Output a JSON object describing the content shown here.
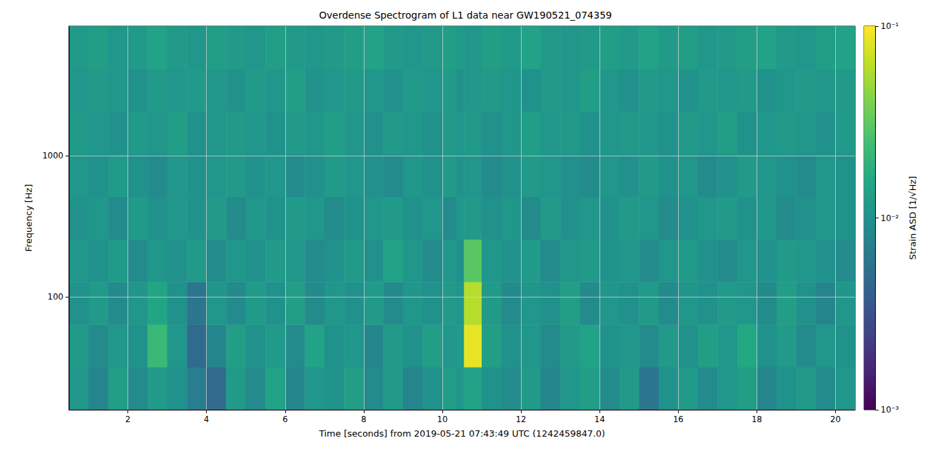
{
  "chart_data": {
    "type": "heatmap",
    "title": "Overdense Spectrogram of L1 data near GW190521_074359",
    "x_label": "Time [seconds] from 2019-05-21 07:43:49 UTC (1242459847.0)",
    "y_label": "Frequency [Hz]",
    "log": "y",
    "grid": true,
    "color": "viridis",
    "xlim": [
      0.5,
      20.5
    ],
    "xticks": [
      2,
      4,
      6,
      8,
      10,
      12,
      14,
      16,
      18,
      20
    ],
    "ylim": [
      16,
      8192
    ],
    "yticks": [
      100,
      1000
    ],
    "time_edges": [
      0.5,
      1.0,
      1.5,
      2.0,
      2.5,
      3.0,
      3.5,
      4.0,
      4.5,
      5.0,
      5.5,
      6.0,
      6.5,
      7.0,
      7.5,
      8.0,
      8.5,
      9.0,
      9.5,
      10.0,
      10.35,
      10.55,
      11.0,
      11.5,
      12.0,
      12.5,
      13.0,
      13.5,
      14.0,
      14.5,
      15.0,
      15.5,
      16.0,
      16.5,
      17.0,
      17.5,
      18.0,
      18.5,
      19.0,
      19.5,
      20.0,
      20.5
    ],
    "frequency_edges": [
      16,
      32,
      64,
      128,
      256,
      512,
      1024,
      2048,
      4096,
      8192
    ],
    "cells": [
      [
        0.011,
        0.008,
        0.013,
        0.009,
        0.012,
        0.01,
        0.007,
        0.005,
        0.012,
        0.009,
        0.014,
        0.008,
        0.011,
        0.01,
        0.013,
        0.009,
        0.012,
        0.008,
        0.01,
        0.013,
        0.011,
        0.014,
        0.01,
        0.009,
        0.012,
        0.008,
        0.011,
        0.013,
        0.009,
        0.012,
        0.006,
        0.01,
        0.012,
        0.009,
        0.011,
        0.013,
        0.008,
        0.01,
        0.012,
        0.009,
        0.011
      ],
      [
        0.012,
        0.009,
        0.011,
        0.01,
        0.022,
        0.011,
        0.005,
        0.008,
        0.013,
        0.01,
        0.012,
        0.009,
        0.014,
        0.01,
        0.011,
        0.008,
        0.012,
        0.01,
        0.013,
        0.011,
        0.012,
        0.085,
        0.013,
        0.01,
        0.011,
        0.009,
        0.012,
        0.014,
        0.01,
        0.011,
        0.009,
        0.012,
        0.01,
        0.013,
        0.011,
        0.016,
        0.01,
        0.012,
        0.009,
        0.011,
        0.01
      ],
      [
        0.01,
        0.012,
        0.009,
        0.011,
        0.015,
        0.01,
        0.006,
        0.011,
        0.009,
        0.012,
        0.01,
        0.013,
        0.009,
        0.011,
        0.01,
        0.012,
        0.009,
        0.011,
        0.01,
        0.012,
        0.011,
        0.06,
        0.012,
        0.009,
        0.011,
        0.01,
        0.013,
        0.009,
        0.011,
        0.01,
        0.012,
        0.009,
        0.011,
        0.01,
        0.012,
        0.011,
        0.009,
        0.013,
        0.01,
        0.008,
        0.011
      ],
      [
        0.011,
        0.01,
        0.012,
        0.009,
        0.011,
        0.01,
        0.012,
        0.009,
        0.011,
        0.01,
        0.012,
        0.011,
        0.009,
        0.01,
        0.012,
        0.01,
        0.014,
        0.011,
        0.009,
        0.011,
        0.01,
        0.03,
        0.011,
        0.01,
        0.012,
        0.009,
        0.011,
        0.012,
        0.01,
        0.011,
        0.009,
        0.011,
        0.012,
        0.01,
        0.009,
        0.011,
        0.01,
        0.012,
        0.011,
        0.01,
        0.009
      ],
      [
        0.01,
        0.011,
        0.009,
        0.012,
        0.01,
        0.011,
        0.01,
        0.012,
        0.009,
        0.011,
        0.01,
        0.012,
        0.011,
        0.009,
        0.01,
        0.011,
        0.012,
        0.01,
        0.011,
        0.009,
        0.011,
        0.012,
        0.01,
        0.011,
        0.009,
        0.012,
        0.01,
        0.011,
        0.01,
        0.012,
        0.011,
        0.009,
        0.01,
        0.011,
        0.012,
        0.01,
        0.011,
        0.009,
        0.01,
        0.011,
        0.01
      ],
      [
        0.011,
        0.01,
        0.012,
        0.01,
        0.009,
        0.011,
        0.01,
        0.011,
        0.012,
        0.01,
        0.011,
        0.009,
        0.01,
        0.012,
        0.011,
        0.01,
        0.009,
        0.011,
        0.01,
        0.012,
        0.01,
        0.011,
        0.009,
        0.01,
        0.012,
        0.011,
        0.01,
        0.009,
        0.011,
        0.01,
        0.012,
        0.01,
        0.011,
        0.009,
        0.01,
        0.012,
        0.011,
        0.01,
        0.009,
        0.011,
        0.01
      ],
      [
        0.012,
        0.011,
        0.01,
        0.012,
        0.011,
        0.013,
        0.01,
        0.011,
        0.012,
        0.011,
        0.01,
        0.012,
        0.011,
        0.013,
        0.011,
        0.01,
        0.012,
        0.011,
        0.01,
        0.012,
        0.011,
        0.012,
        0.01,
        0.011,
        0.013,
        0.011,
        0.012,
        0.01,
        0.011,
        0.012,
        0.011,
        0.01,
        0.012,
        0.011,
        0.013,
        0.01,
        0.011,
        0.012,
        0.011,
        0.01,
        0.012
      ],
      [
        0.011,
        0.012,
        0.011,
        0.01,
        0.012,
        0.011,
        0.012,
        0.011,
        0.01,
        0.012,
        0.011,
        0.013,
        0.01,
        0.011,
        0.012,
        0.011,
        0.01,
        0.012,
        0.011,
        0.012,
        0.01,
        0.011,
        0.012,
        0.011,
        0.01,
        0.012,
        0.011,
        0.013,
        0.011,
        0.01,
        0.012,
        0.011,
        0.01,
        0.012,
        0.011,
        0.012,
        0.01,
        0.011,
        0.012,
        0.011,
        0.012
      ],
      [
        0.012,
        0.013,
        0.011,
        0.012,
        0.014,
        0.012,
        0.011,
        0.013,
        0.012,
        0.011,
        0.013,
        0.012,
        0.011,
        0.012,
        0.013,
        0.014,
        0.012,
        0.011,
        0.012,
        0.013,
        0.012,
        0.011,
        0.013,
        0.012,
        0.014,
        0.012,
        0.011,
        0.012,
        0.013,
        0.012,
        0.014,
        0.012,
        0.013,
        0.011,
        0.012,
        0.013,
        0.014,
        0.012,
        0.011,
        0.013,
        0.014
      ]
    ],
    "colorbar": {
      "label": "Strain ASD [1/√Hz]",
      "log": true,
      "range": [
        0.001,
        0.1
      ],
      "ticks": [
        {
          "value": 0.001,
          "label": "10⁻³"
        },
        {
          "value": 0.01,
          "label": "10⁻²"
        },
        {
          "value": 0.1,
          "label": "10⁻¹"
        }
      ]
    }
  }
}
